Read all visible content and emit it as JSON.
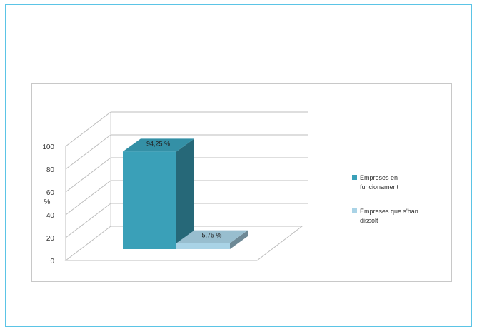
{
  "chart_data": {
    "type": "bar",
    "ylabel": "%",
    "ylim": [
      0,
      100
    ],
    "yticks": [
      "0",
      "20",
      "40",
      "60",
      "80",
      "100"
    ],
    "grid": true,
    "legend_position": "right",
    "series": [
      {
        "name": "Empreses en funcionament",
        "value": 94.25,
        "label": "94,25 %",
        "color": "#3aa0b8"
      },
      {
        "name": "Empreses que s'han dissolt",
        "value": 5.75,
        "label": "5,75 %",
        "color": "#a9d3e6"
      }
    ]
  }
}
